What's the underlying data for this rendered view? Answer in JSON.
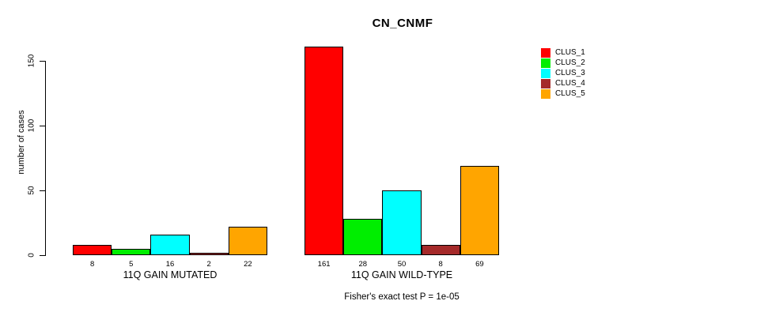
{
  "chart_data": {
    "type": "bar",
    "title": "CN_CNMF",
    "xlabel": "",
    "ylabel": "number of cases",
    "ylim": [
      0,
      150
    ],
    "yticks": [
      0,
      50,
      100,
      150
    ],
    "grid": false,
    "legend_position": "top-right",
    "legend": [
      {
        "label": "CLUS_1",
        "color": "#FF0000"
      },
      {
        "label": "CLUS_2",
        "color": "#00EE00"
      },
      {
        "label": "CLUS_3",
        "color": "#00FFFF"
      },
      {
        "label": "CLUS_4",
        "color": "#A52A2A"
      },
      {
        "label": "CLUS_5",
        "color": "#FFA500"
      }
    ],
    "groups": [
      {
        "label": "11Q GAIN MUTATED",
        "values": [
          8,
          5,
          16,
          2,
          22
        ]
      },
      {
        "label": "11Q GAIN WILD-TYPE",
        "values": [
          161,
          28,
          50,
          8,
          69
        ]
      }
    ],
    "annotation": "Fisher's exact test P = 1e-05"
  }
}
